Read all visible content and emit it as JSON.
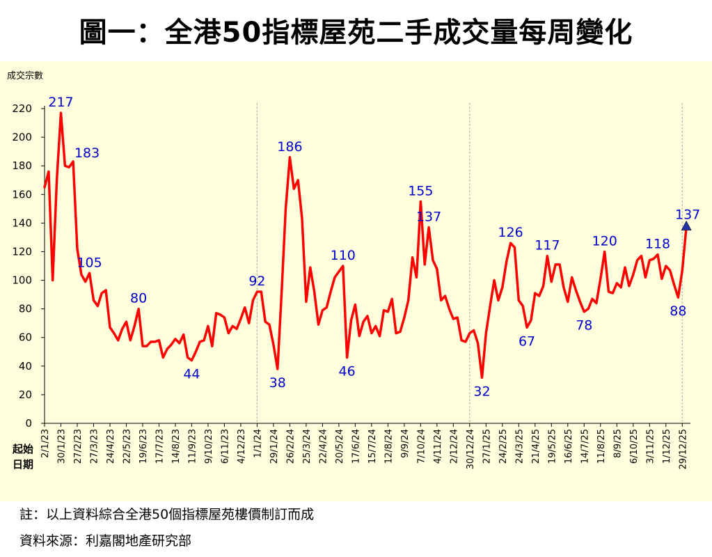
{
  "header": {
    "title": "圖一：全港50指標屋苑二手成交量每周變化"
  },
  "footer": {
    "note": "註：以上資料綜合全港50個指標屋苑樓價制訂而成",
    "source": "資料來源：利嘉閣地產研究部"
  },
  "colors": {
    "line": "#ff0000",
    "label": "#0000cc",
    "marker": "#2233aa",
    "background": "#ffffdd",
    "separator": "#aaaaaa"
  },
  "chart_data": {
    "type": "line",
    "title": "圖一：全港50指標屋苑二手成交量每周變化",
    "ylabel": "成交宗數",
    "xlabel": "起始日期",
    "xlabel_lines": [
      "起始",
      "日期"
    ],
    "ylim": [
      0,
      220
    ],
    "yticks": [
      0,
      20,
      40,
      60,
      80,
      100,
      120,
      140,
      160,
      180,
      200,
      220
    ],
    "grid": false,
    "tick_labels": [
      "2/1/23",
      "30/1/23",
      "27/2/23",
      "27/3/23",
      "24/4/23",
      "22/5/23",
      "19/6/23",
      "17/7/23",
      "14/8/23",
      "11/9/23",
      "9/10/23",
      "6/11/23",
      "4/12/23",
      "1/1/24",
      "29/1/24",
      "26/2/24",
      "25/3/24",
      "22/4/24",
      "20/5/24",
      "17/6/24",
      "15/7/24",
      "12/8/24",
      "9/9/24",
      "7/10/24",
      "4/11/24",
      "2/12/24",
      "30/12/24",
      "27/1/25",
      "24/2/25",
      "24/3/25",
      "21/4/25",
      "19/5/25",
      "16/6/25",
      "14/7/25",
      "11/8/25",
      "8/9/25",
      "6/10/25",
      "3/11/25",
      "1/12/25",
      "29/12/25"
    ],
    "year_separators": [
      52,
      104,
      156
    ],
    "series": [
      {
        "name": "成交宗數",
        "values": [
          165,
          176,
          100,
          170,
          217,
          180,
          179,
          183,
          122,
          104,
          99,
          105,
          86,
          82,
          91,
          93,
          67,
          63,
          58,
          66,
          71,
          58,
          68,
          80,
          54,
          54,
          57,
          57,
          58,
          46,
          52,
          55,
          59,
          56,
          62,
          46,
          44,
          50,
          57,
          58,
          68,
          54,
          77,
          76,
          74,
          63,
          68,
          66,
          73,
          81,
          70,
          86,
          92,
          92,
          71,
          69,
          55,
          38,
          92,
          150,
          186,
          164,
          170,
          143,
          85,
          109,
          92,
          69,
          79,
          81,
          92,
          102,
          106,
          110,
          46,
          72,
          83,
          61,
          71,
          75,
          63,
          68,
          61,
          79,
          78,
          87,
          63,
          64,
          74,
          86,
          116,
          102,
          155,
          111,
          137,
          114,
          108,
          86,
          89,
          80,
          73,
          74,
          58,
          57,
          63,
          65,
          56,
          32,
          63,
          82,
          100,
          86,
          95,
          113,
          126,
          123,
          86,
          82,
          67,
          72,
          91,
          89,
          96,
          117,
          99,
          111,
          111,
          95,
          85,
          102,
          93,
          85,
          78,
          80,
          87,
          84,
          101,
          120,
          92,
          91,
          98,
          95,
          109,
          96,
          104,
          114,
          117,
          102,
          114,
          115,
          118,
          101,
          110,
          107,
          97,
          88,
          107,
          137
        ]
      }
    ],
    "annotations": [
      {
        "index": 4,
        "value": 217,
        "label": "217",
        "position": "above"
      },
      {
        "index": 7,
        "value": 183,
        "label": "183",
        "position": "right"
      },
      {
        "index": 11,
        "value": 105,
        "label": "105",
        "position": "above"
      },
      {
        "index": 23,
        "value": 80,
        "label": "80",
        "position": "above"
      },
      {
        "index": 36,
        "value": 44,
        "label": "44",
        "position": "below"
      },
      {
        "index": 52,
        "value": 92,
        "label": "92",
        "position": "above"
      },
      {
        "index": 57,
        "value": 38,
        "label": "38",
        "position": "below"
      },
      {
        "index": 60,
        "value": 186,
        "label": "186",
        "position": "above"
      },
      {
        "index": 73,
        "value": 110,
        "label": "110",
        "position": "above"
      },
      {
        "index": 74,
        "value": 46,
        "label": "46",
        "position": "below"
      },
      {
        "index": 92,
        "value": 155,
        "label": "155",
        "position": "above"
      },
      {
        "index": 94,
        "value": 137,
        "label": "137",
        "position": "above"
      },
      {
        "index": 107,
        "value": 32,
        "label": "32",
        "position": "below"
      },
      {
        "index": 114,
        "value": 126,
        "label": "126",
        "position": "above"
      },
      {
        "index": 118,
        "value": 67,
        "label": "67",
        "position": "below"
      },
      {
        "index": 123,
        "value": 117,
        "label": "117",
        "position": "above"
      },
      {
        "index": 132,
        "value": 78,
        "label": "78",
        "position": "below"
      },
      {
        "index": 137,
        "value": 120,
        "label": "120",
        "position": "above"
      },
      {
        "index": 150,
        "value": 118,
        "label": "118",
        "position": "above"
      },
      {
        "index": 155,
        "value": 88,
        "label": "88",
        "position": "below"
      },
      {
        "index": 157,
        "value": 137,
        "label": "137",
        "position": "above"
      }
    ]
  }
}
